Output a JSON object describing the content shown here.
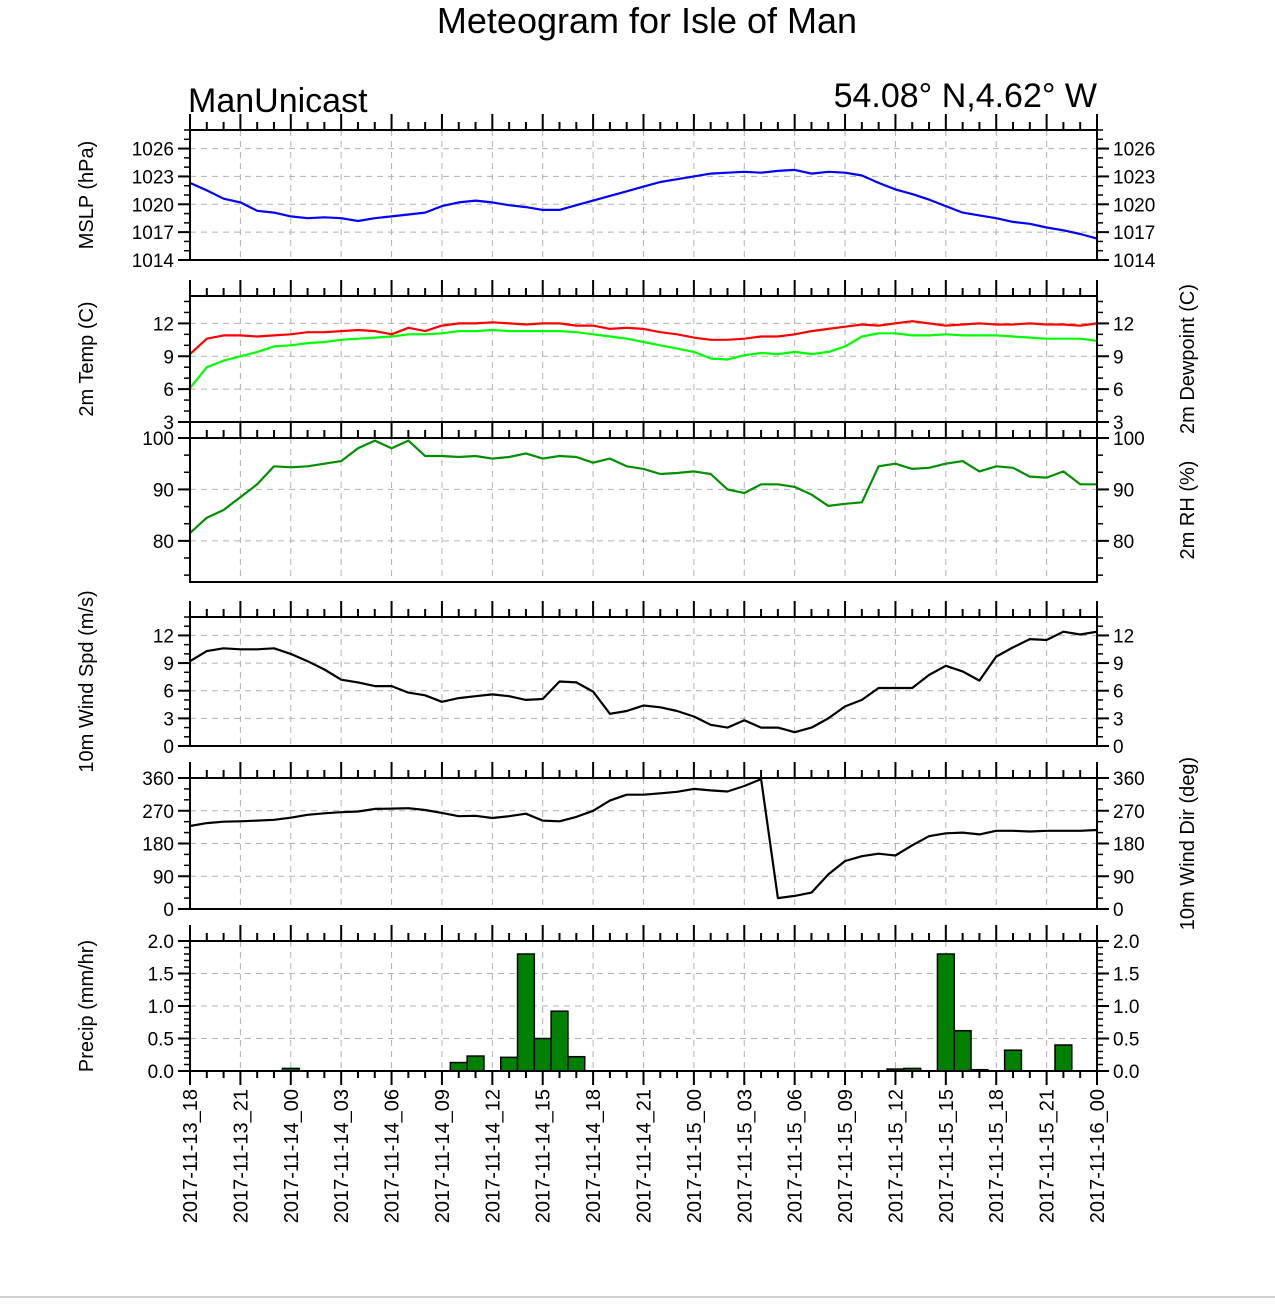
{
  "title": "Meteogram for Isle of Man",
  "subtitle_left": "ManUnicast",
  "subtitle_right": "54.08° N,4.62° W",
  "chart_data": {
    "type": "line",
    "x_ticks": [
      "2017-11-13_18",
      "2017-11-13_21",
      "2017-11-14_00",
      "2017-11-14_03",
      "2017-11-14_06",
      "2017-11-14_09",
      "2017-11-14_12",
      "2017-11-14_15",
      "2017-11-14_18",
      "2017-11-14_21",
      "2017-11-15_00",
      "2017-11-15_03",
      "2017-11-15_06",
      "2017-11-15_09",
      "2017-11-15_12",
      "2017-11-15_15",
      "2017-11-15_18",
      "2017-11-15_21",
      "2017-11-16_00"
    ],
    "x_hours_range": [
      0,
      54
    ],
    "grid": true,
    "panels": [
      {
        "id": "mslp",
        "ylabel_left": "MSLP (hPa)",
        "ylabel_right": "",
        "ylim": [
          1014,
          1028
        ],
        "ticks": [
          1014,
          1017,
          1020,
          1023,
          1026
        ],
        "tick_labels": [
          "1014",
          "1017",
          "1020",
          "1023",
          "1026"
        ],
        "series": [
          {
            "color": "#0000ff",
            "x": [
              0,
              1,
              2,
              3,
              4,
              5,
              6,
              7,
              8,
              9,
              10,
              11,
              12,
              13,
              14,
              15,
              16,
              17,
              18,
              19,
              20,
              21,
              22,
              23,
              24,
              25,
              26,
              27,
              28,
              29,
              30,
              31,
              32,
              33,
              34,
              35,
              36,
              37,
              38,
              39,
              40,
              41,
              42,
              43,
              44,
              45,
              46,
              47,
              48,
              49,
              50,
              51,
              52,
              53,
              54
            ],
            "y": [
              1022.3,
              1021.5,
              1020.6,
              1020.2,
              1019.3,
              1019.1,
              1018.7,
              1018.5,
              1018.6,
              1018.5,
              1018.2,
              1018.5,
              1018.7,
              1018.9,
              1019.1,
              1019.8,
              1020.2,
              1020.4,
              1020.2,
              1019.9,
              1019.7,
              1019.4,
              1019.4,
              1019.9,
              1020.4,
              1020.9,
              1021.4,
              1021.9,
              1022.4,
              1022.7,
              1023.0,
              1023.3,
              1023.4,
              1023.5,
              1023.4,
              1023.6,
              1023.7,
              1023.3,
              1023.5,
              1023.4,
              1023.1,
              1022.3,
              1021.6,
              1021.1,
              1020.5,
              1019.8,
              1019.1,
              1018.8,
              1018.5,
              1018.1,
              1017.9,
              1017.5,
              1017.2,
              1016.8,
              1016.3
            ]
          }
        ]
      },
      {
        "id": "temp",
        "ylabel_left": "2m Temp (C)",
        "ylabel_right": "2m Dewpoint (C)",
        "ylim": [
          3,
          14.5
        ],
        "ticks": [
          3,
          6,
          9,
          12
        ],
        "tick_labels": [
          "3",
          "6",
          "9",
          "12"
        ],
        "series": [
          {
            "color": "#ff0000",
            "x": [
              0,
              1,
              2,
              3,
              4,
              5,
              6,
              7,
              8,
              9,
              10,
              11,
              12,
              13,
              14,
              15,
              16,
              17,
              18,
              19,
              20,
              21,
              22,
              23,
              24,
              25,
              26,
              27,
              28,
              29,
              30,
              31,
              32,
              33,
              34,
              35,
              36,
              37,
              38,
              39,
              40,
              41,
              42,
              43,
              44,
              45,
              46,
              47,
              48,
              49,
              50,
              51,
              52,
              53,
              54
            ],
            "y": [
              9.2,
              10.6,
              10.9,
              10.9,
              10.8,
              10.9,
              11.0,
              11.2,
              11.2,
              11.3,
              11.4,
              11.3,
              11.0,
              11.6,
              11.3,
              11.8,
              12.0,
              12.0,
              12.1,
              12.0,
              11.9,
              12.0,
              12.0,
              11.8,
              11.8,
              11.5,
              11.6,
              11.5,
              11.2,
              11.0,
              10.7,
              10.5,
              10.5,
              10.6,
              10.8,
              10.8,
              11.0,
              11.3,
              11.5,
              11.7,
              11.9,
              11.8,
              12.0,
              12.2,
              12.0,
              11.8,
              11.9,
              12.0,
              11.9,
              11.9,
              12.0,
              11.9,
              11.9,
              11.8,
              12.0
            ]
          },
          {
            "color": "#00ff00",
            "x": [
              0,
              1,
              2,
              3,
              4,
              5,
              6,
              7,
              8,
              9,
              10,
              11,
              12,
              13,
              14,
              15,
              16,
              17,
              18,
              19,
              20,
              21,
              22,
              23,
              24,
              25,
              26,
              27,
              28,
              29,
              30,
              31,
              32,
              33,
              34,
              35,
              36,
              37,
              38,
              39,
              40,
              41,
              42,
              43,
              44,
              45,
              46,
              47,
              48,
              49,
              50,
              51,
              52,
              53,
              54
            ],
            "y": [
              6.1,
              8.0,
              8.6,
              9.0,
              9.4,
              9.9,
              10.0,
              10.2,
              10.3,
              10.5,
              10.6,
              10.7,
              10.8,
              11.0,
              11.0,
              11.1,
              11.3,
              11.3,
              11.4,
              11.3,
              11.3,
              11.3,
              11.3,
              11.2,
              11.0,
              10.8,
              10.6,
              10.3,
              10.0,
              9.7,
              9.4,
              8.8,
              8.7,
              9.1,
              9.3,
              9.2,
              9.4,
              9.2,
              9.4,
              9.9,
              10.8,
              11.1,
              11.1,
              10.9,
              10.9,
              11.0,
              10.9,
              10.9,
              10.9,
              10.8,
              10.7,
              10.6,
              10.6,
              10.6,
              10.4
            ]
          }
        ]
      },
      {
        "id": "rh",
        "ylabel_left": "",
        "ylabel_right": "2m RH (%)",
        "ylim": [
          72,
          100
        ],
        "ticks": [
          80,
          90,
          100
        ],
        "tick_labels": [
          "80",
          "90",
          "100"
        ],
        "series": [
          {
            "color": "#008f00",
            "x": [
              0,
              1,
              2,
              3,
              4,
              5,
              6,
              7,
              8,
              9,
              10,
              11,
              12,
              13,
              14,
              15,
              16,
              17,
              18,
              19,
              20,
              21,
              22,
              23,
              24,
              25,
              26,
              27,
              28,
              29,
              30,
              31,
              32,
              33,
              34,
              35,
              36,
              37,
              38,
              39,
              40,
              41,
              42,
              43,
              44,
              45,
              46,
              47,
              48,
              49,
              50,
              51,
              52,
              53,
              54
            ],
            "y": [
              81.5,
              84.5,
              86.0,
              88.5,
              91.0,
              94.5,
              94.3,
              94.5,
              95.0,
              95.5,
              98.0,
              99.5,
              98.0,
              99.5,
              96.5,
              96.5,
              96.3,
              96.5,
              96.0,
              96.3,
              97.0,
              96.0,
              96.5,
              96.3,
              95.2,
              96.0,
              94.5,
              94.0,
              93.0,
              93.2,
              93.5,
              93.0,
              90.0,
              89.3,
              91.0,
              91.0,
              90.5,
              89.0,
              86.8,
              87.2,
              87.5,
              94.5,
              95.0,
              94.0,
              94.2,
              95.0,
              95.5,
              93.5,
              94.5,
              94.2,
              92.5,
              92.3,
              93.5,
              91.0,
              91.0
            ]
          }
        ]
      },
      {
        "id": "wspd",
        "ylabel_left": "10m Wind Spd (m/s)",
        "ylabel_right": "",
        "ylim": [
          0,
          14
        ],
        "ticks": [
          0,
          3,
          6,
          9,
          12
        ],
        "tick_labels": [
          "0",
          "3",
          "6",
          "9",
          "12"
        ],
        "series": [
          {
            "color": "#000000",
            "x": [
              0,
              1,
              2,
              3,
              4,
              5,
              6,
              7,
              8,
              9,
              10,
              11,
              12,
              13,
              14,
              15,
              16,
              17,
              18,
              19,
              20,
              21,
              22,
              23,
              24,
              25,
              26,
              27,
              28,
              29,
              30,
              31,
              32,
              33,
              34,
              35,
              36,
              37,
              38,
              39,
              40,
              41,
              42,
              43,
              44,
              45,
              46,
              47,
              48,
              49,
              50,
              51,
              52,
              53,
              54
            ],
            "y": [
              9.2,
              10.3,
              10.6,
              10.5,
              10.5,
              10.6,
              10.0,
              9.2,
              8.3,
              7.2,
              6.9,
              6.5,
              6.5,
              5.8,
              5.5,
              4.8,
              5.2,
              5.4,
              5.6,
              5.4,
              5.0,
              5.1,
              7.0,
              6.9,
              5.9,
              3.5,
              3.8,
              4.4,
              4.2,
              3.8,
              3.2,
              2.3,
              2.0,
              2.8,
              2.0,
              2.0,
              1.5,
              2.0,
              3.0,
              4.3,
              5.0,
              6.3,
              6.3,
              6.3,
              7.7,
              8.7,
              8.1,
              7.1,
              9.7,
              10.7,
              11.6,
              11.5,
              12.4,
              12.1,
              12.4
            ]
          }
        ]
      },
      {
        "id": "wdir",
        "ylabel_left": "",
        "ylabel_right": "10m Wind Dir (deg)",
        "ylim": [
          0,
          360
        ],
        "ticks": [
          0,
          90,
          180,
          270,
          360
        ],
        "tick_labels": [
          "0",
          "90",
          "180",
          "270",
          "360"
        ],
        "series": [
          {
            "color": "#000000",
            "x": [
              0,
              1,
              2,
              3,
              4,
              5,
              6,
              7,
              8,
              9,
              10,
              11,
              12,
              13,
              14,
              15,
              16,
              17,
              18,
              19,
              20,
              21,
              22,
              23,
              24,
              25,
              26,
              27,
              28,
              29,
              30,
              31,
              32,
              33,
              34,
              35,
              36,
              37,
              38,
              39,
              40,
              41,
              42,
              43,
              44,
              45,
              46,
              47,
              48,
              49,
              50,
              51,
              52,
              53,
              54
            ],
            "y": [
              228,
              236,
              240,
              241,
              243,
              245,
              251,
              259,
              263,
              266,
              268,
              275,
              276,
              277,
              272,
              264,
              255,
              256,
              250,
              255,
              262,
              243,
              241,
              253,
              270,
              298,
              314,
              314,
              318,
              322,
              330,
              326,
              323,
              338,
              357,
              30,
              36,
              45,
              95,
              132,
              145,
              152,
              147,
              175,
              200,
              208,
              210,
              205,
              215,
              215,
              213,
              215,
              215,
              215,
              217
            ]
          }
        ]
      },
      {
        "id": "precip",
        "ylabel_left": "Precip (mm/hr)",
        "ylabel_right": "",
        "ylim": [
          0,
          2.0
        ],
        "ticks": [
          0,
          0.5,
          1.0,
          1.5,
          2.0
        ],
        "tick_labels": [
          "0.0",
          "0.5",
          "1.0",
          "1.5",
          "2.0"
        ],
        "bar_color": "#008000",
        "bars": {
          "x": [
            6,
            16,
            17,
            19,
            20,
            21,
            22,
            23,
            42,
            43,
            45,
            46,
            47,
            49,
            52
          ],
          "values": [
            0.04,
            0.13,
            0.23,
            0.21,
            1.8,
            0.5,
            0.92,
            0.22,
            0.03,
            0.04,
            1.8,
            0.62,
            0.02,
            0.32,
            0.4
          ]
        }
      }
    ]
  }
}
